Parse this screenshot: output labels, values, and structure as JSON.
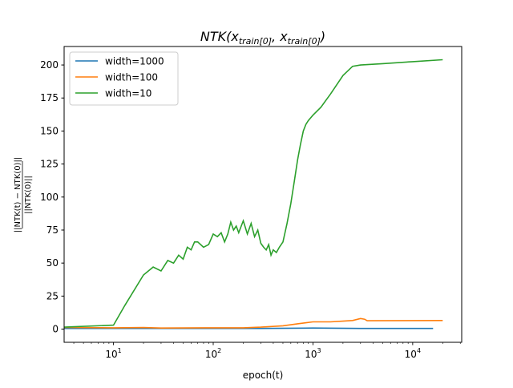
{
  "chart_data": {
    "type": "line",
    "title": "NTK(x_train[0], x_train[0])",
    "title_parts": {
      "main": "NTK(x",
      "sub": "train[0]",
      "sep": ", x",
      "close": ")"
    },
    "xlabel": "epoch(t)",
    "ylabel": "||NTK(t) − NTK(0)|| / ||NTK(0)||",
    "ylabel_num": "||NTK(t) − NTK(0)||",
    "ylabel_den": "||NTK(0)||",
    "xscale": "log",
    "xlim": [
      3.2,
      31000
    ],
    "ylim": [
      -10,
      214
    ],
    "xticks": [
      {
        "v": 10,
        "b": "10",
        "e": "1"
      },
      {
        "v": 100,
        "b": "10",
        "e": "2"
      },
      {
        "v": 1000,
        "b": "10",
        "e": "3"
      },
      {
        "v": 10000,
        "b": "10",
        "e": "4"
      }
    ],
    "yticks": [
      0,
      25,
      50,
      75,
      100,
      125,
      150,
      175,
      200
    ],
    "legend_position": "top-left",
    "series": [
      {
        "name": "width=1000",
        "color": "#1f77b4",
        "x": [
          1,
          10,
          100,
          300,
          1000,
          3000,
          10000,
          16000
        ],
        "y": [
          0.5,
          0.5,
          0.5,
          0.5,
          0.8,
          0.5,
          0.5,
          0.5
        ]
      },
      {
        "name": "width=100",
        "color": "#ff7f0e",
        "x": [
          1,
          10,
          20,
          30,
          100,
          200,
          300,
          500,
          700,
          1000,
          1500,
          2000,
          2500,
          3000,
          3300,
          3500,
          20000
        ],
        "y": [
          1.5,
          1,
          1.2,
          0.8,
          1,
          1,
          1.5,
          2.5,
          4,
          5.5,
          5.5,
          6,
          6.5,
          8,
          7.5,
          6.3,
          6.5
        ]
      },
      {
        "name": "width=10",
        "color": "#2ca02c",
        "x": [
          1,
          10,
          13,
          20,
          25,
          30,
          35,
          40,
          45,
          50,
          55,
          60,
          65,
          70,
          80,
          90,
          100,
          110,
          120,
          130,
          140,
          150,
          160,
          170,
          180,
          200,
          220,
          240,
          260,
          280,
          300,
          320,
          340,
          360,
          380,
          400,
          430,
          460,
          500,
          550,
          600,
          650,
          700,
          750,
          800,
          850,
          900,
          1000,
          1200,
          1500,
          2000,
          2500,
          3000,
          5000,
          10000,
          20000
        ],
        "y": [
          0,
          3,
          18,
          41,
          47,
          44,
          52,
          50,
          56,
          53,
          62,
          60,
          66,
          66,
          62,
          64,
          72,
          70,
          73,
          66,
          72,
          81,
          75,
          78,
          73,
          82,
          72,
          80,
          70,
          75,
          65,
          62,
          60,
          64,
          56,
          60,
          58,
          62,
          66,
          80,
          95,
          112,
          128,
          140,
          150,
          155,
          158,
          162,
          168,
          178,
          192,
          199,
          200,
          201,
          202.5,
          204
        ]
      }
    ]
  }
}
